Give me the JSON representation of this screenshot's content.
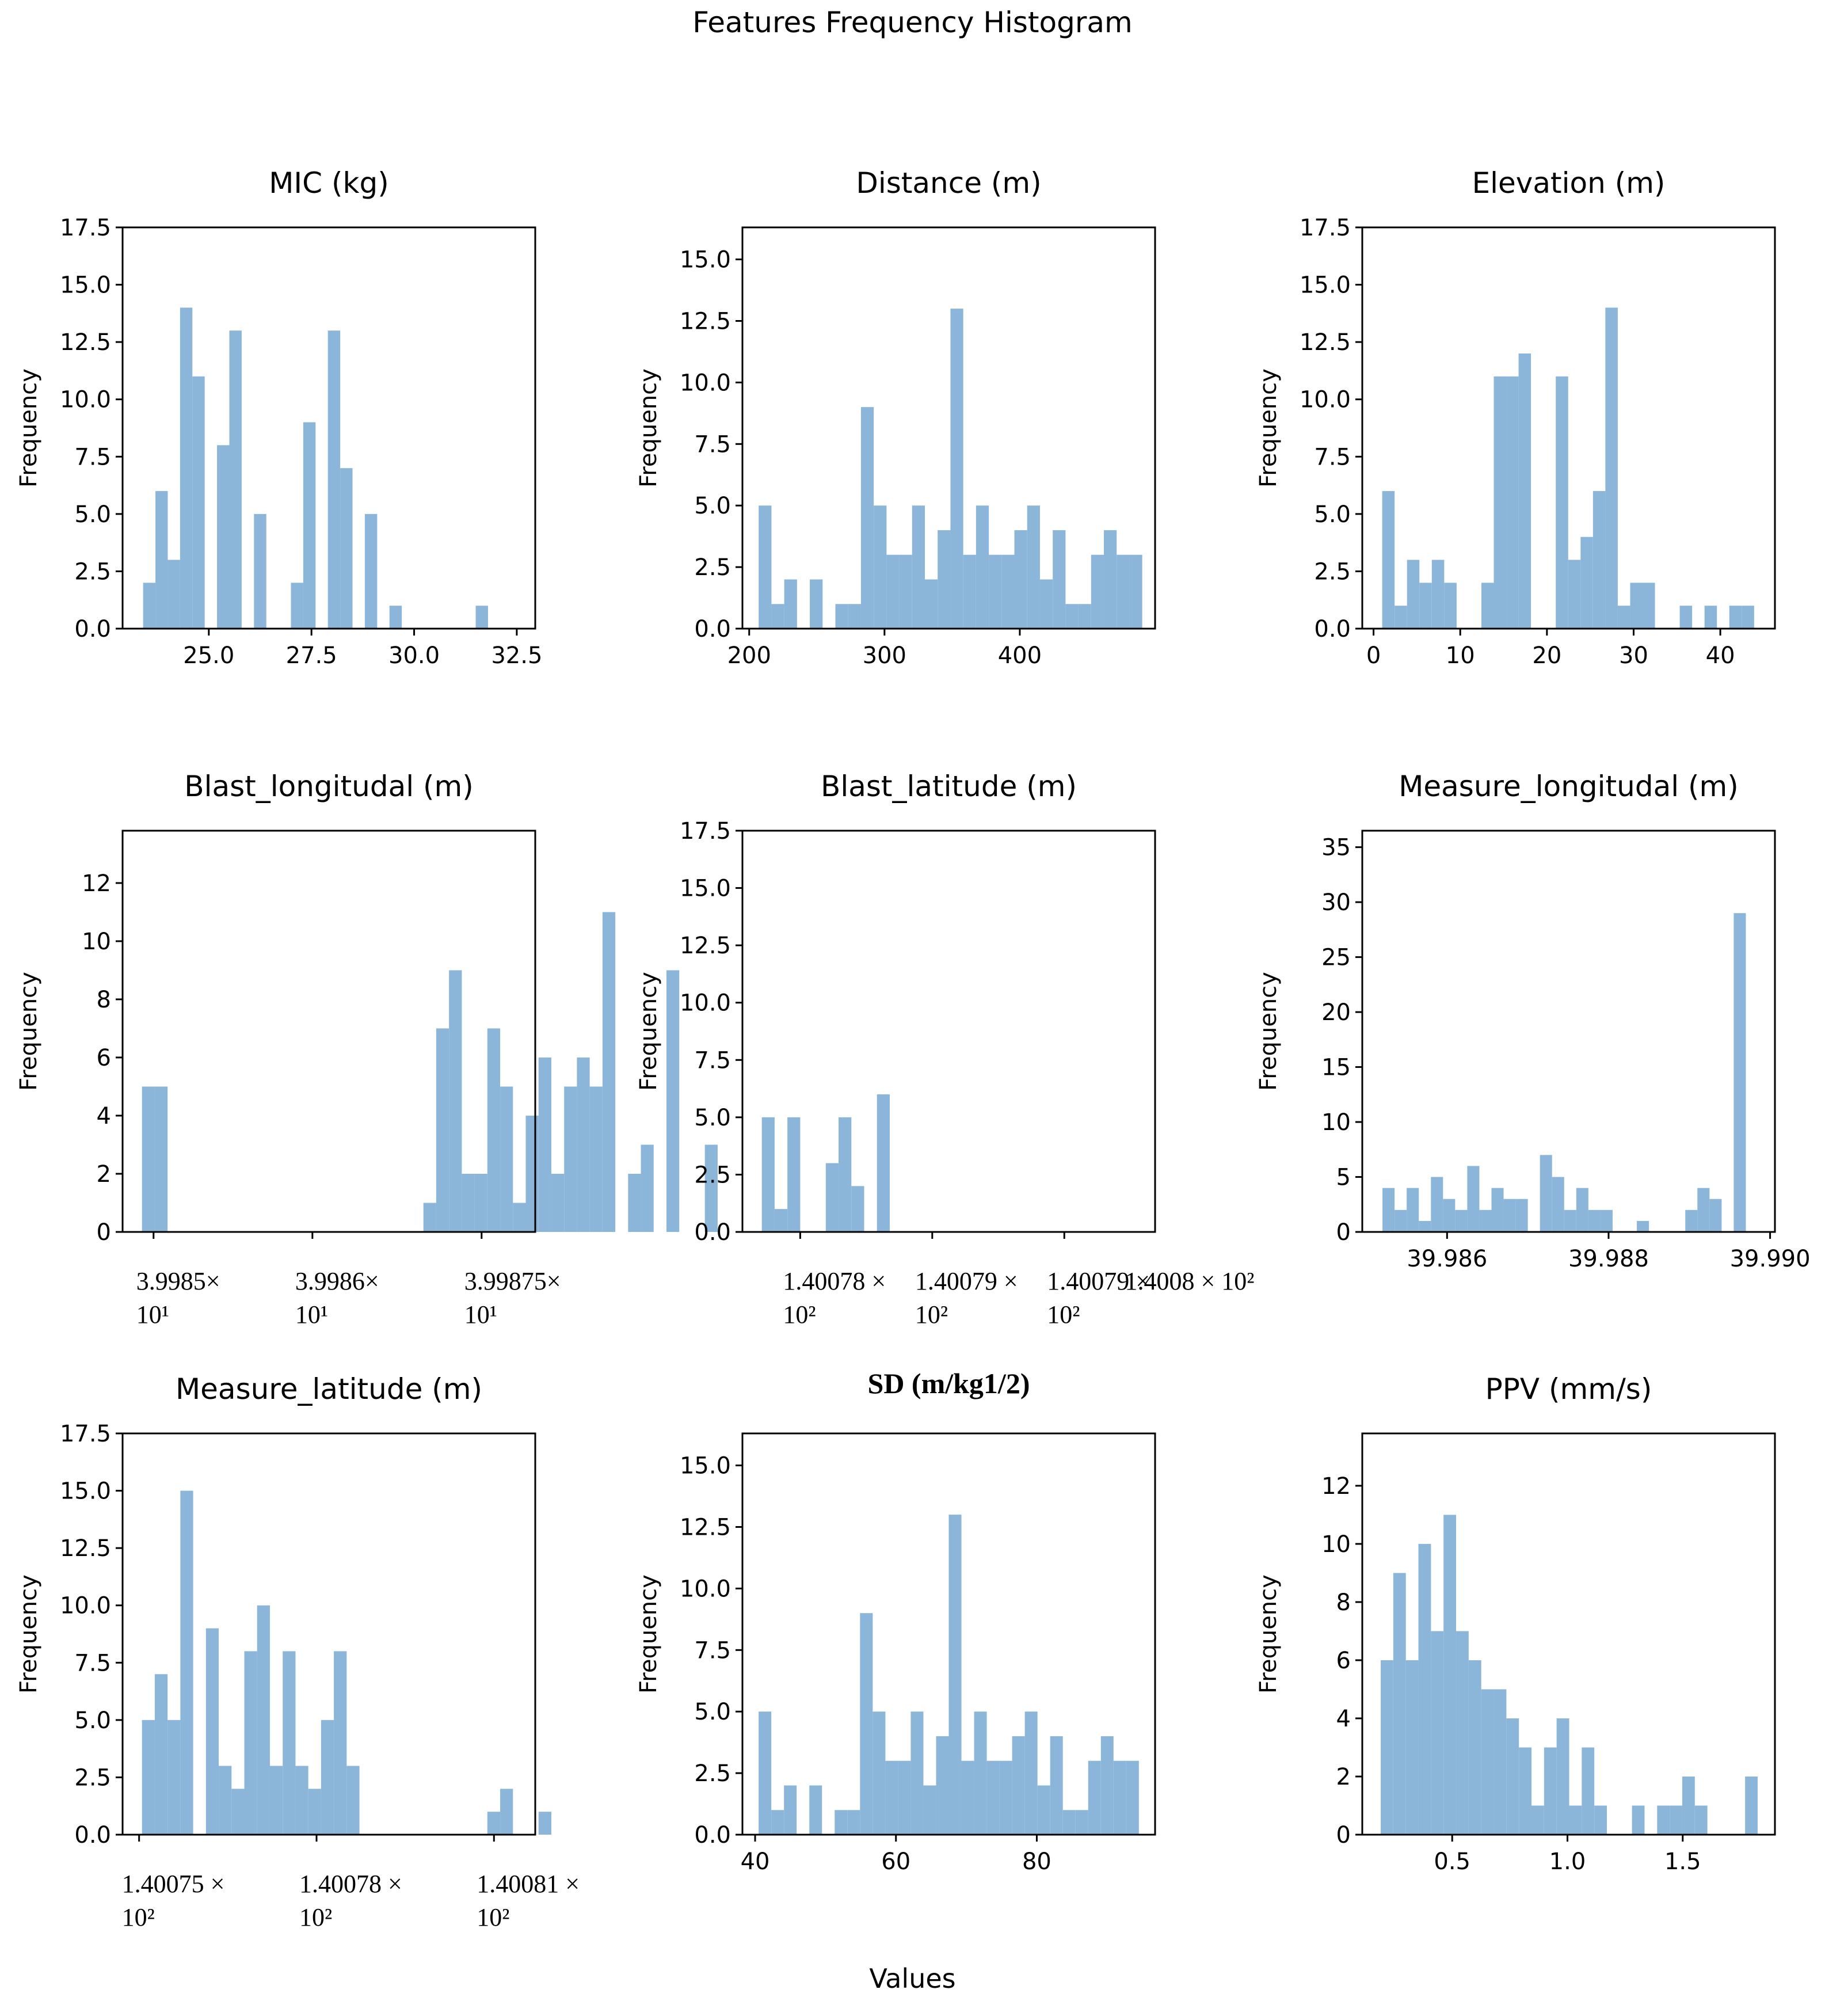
{
  "figure": {
    "title": "Features Frequency Histogram",
    "xlabel": "Values"
  },
  "chart_data": [
    {
      "type": "bar",
      "title": "MIC (kg)",
      "ylabel": "Frequency",
      "xlabel": "",
      "xlim": [
        22.9,
        32.95
      ],
      "ylim": [
        0,
        17.5
      ],
      "yticks": [
        "0.0",
        "2.5",
        "5.0",
        "7.5",
        "10.0",
        "12.5",
        "15.0",
        "17.5"
      ],
      "xticks": [
        {
          "value": 25.0,
          "lines": [
            "25.0"
          ]
        },
        {
          "value": 27.5,
          "lines": [
            "27.5"
          ]
        },
        {
          "value": 30.0,
          "lines": [
            "30.0"
          ]
        },
        {
          "value": 32.5,
          "lines": [
            "32.5"
          ]
        }
      ],
      "bin_start": 23.4,
      "bin_width": 0.3,
      "values": [
        2,
        6,
        3,
        14,
        11,
        0,
        8,
        13,
        0,
        5,
        0,
        0,
        2,
        9,
        0,
        13,
        7,
        0,
        5,
        0,
        1,
        0,
        0,
        0,
        0,
        0,
        0,
        1
      ]
    },
    {
      "type": "bar",
      "title": "Distance (m)",
      "ylabel": "Frequency",
      "xlabel": "",
      "xlim": [
        195,
        500
      ],
      "ylim": [
        0,
        16.3
      ],
      "yticks": [
        "0.0",
        "2.5",
        "5.0",
        "7.5",
        "10.0",
        "12.5",
        "15.0"
      ],
      "xticks": [
        {
          "value": 200,
          "lines": [
            "200"
          ]
        },
        {
          "value": 300,
          "lines": [
            "300"
          ]
        },
        {
          "value": 400,
          "lines": [
            "400"
          ]
        }
      ],
      "bin_start": 207,
      "bin_width": 9.45,
      "values": [
        5,
        1,
        2,
        0,
        2,
        0,
        1,
        1,
        9,
        5,
        3,
        3,
        5,
        2,
        4,
        13,
        3,
        5,
        3,
        3,
        4,
        5,
        2,
        4,
        1,
        1,
        3,
        4,
        3,
        3
      ]
    },
    {
      "type": "bar",
      "title": "Elevation (m)",
      "ylabel": "Frequency",
      "xlabel": "",
      "xlim": [
        -1.3,
        46.3
      ],
      "ylim": [
        0,
        17.5
      ],
      "yticks": [
        "0.0",
        "2.5",
        "5.0",
        "7.5",
        "10.0",
        "12.5",
        "15.0",
        "17.5"
      ],
      "xticks": [
        {
          "value": 0,
          "lines": [
            "0"
          ]
        },
        {
          "value": 10,
          "lines": [
            "10"
          ]
        },
        {
          "value": 20,
          "lines": [
            "20"
          ]
        },
        {
          "value": 30,
          "lines": [
            "30"
          ]
        },
        {
          "value": 40,
          "lines": [
            "40"
          ]
        }
      ],
      "bin_start": 1.0,
      "bin_width": 1.43,
      "values": [
        6,
        1,
        3,
        2,
        3,
        2,
        0,
        0,
        2,
        11,
        11,
        12,
        0,
        0,
        11,
        3,
        4,
        6,
        14,
        1,
        2,
        2,
        0,
        0,
        1,
        0,
        1,
        0,
        1,
        1
      ]
    },
    {
      "type": "bar",
      "title": "Blast_longitudal (m)",
      "ylabel": "Frequency",
      "xlabel": "",
      "xlim": [
        0,
        100
      ],
      "ylim": [
        0,
        13.8
      ],
      "yticks": [
        "0",
        "2",
        "4",
        "6",
        "8",
        "10",
        "12"
      ],
      "xticks": [
        {
          "value": 7.5,
          "lines": [
            "3.9985×",
            "10¹"
          ]
        },
        {
          "value": 46.0,
          "lines": [
            "3.9986×",
            "10¹"
          ]
        },
        {
          "value": 87.0,
          "lines": [
            "3.99875×",
            "10¹"
          ]
        }
      ],
      "bin_start": 4.7,
      "bin_width": 3.1,
      "values": [
        5,
        5,
        0,
        0,
        0,
        0,
        0,
        0,
        0,
        0,
        0,
        0,
        0,
        0,
        0,
        0,
        0,
        0,
        0,
        0,
        0,
        0,
        1,
        7,
        9,
        2,
        2,
        7,
        5,
        1,
        4,
        6,
        2,
        5,
        6,
        5,
        11,
        0,
        2,
        3,
        0,
        9,
        0,
        0,
        3
      ]
    },
    {
      "type": "bar",
      "title": "Blast_latitude (m)",
      "ylabel": "Frequency",
      "xlabel": "",
      "xlim": [
        0,
        100
      ],
      "ylim": [
        0,
        17.5
      ],
      "yticks": [
        "0.0",
        "2.5",
        "5.0",
        "7.5",
        "10.0",
        "12.5",
        "15.0",
        "17.5"
      ],
      "xticks": [
        {
          "value": 14.0,
          "lines": [
            "1.40078 ×",
            "10²"
          ]
        },
        {
          "value": 46.0,
          "lines": [
            "1.40079 ×",
            "10²"
          ]
        },
        {
          "value": 78.0,
          "lines": [
            "1.40079 ×",
            "10²"
          ]
        },
        {
          "value": 100.0,
          "lines": [
            "1.4008 × 10²"
          ]
        }
      ],
      "bin_start": 4.7,
      "bin_width": 3.1,
      "values": [
        5,
        1,
        5,
        0,
        0,
        3,
        5,
        2,
        0,
        6,
        0,
        0,
        0,
        0,
        0,
        0,
        0,
        0,
        0,
        0,
        0,
        0,
        0,
        0,
        0,
        0,
        0,
        0,
        0,
        0,
        0,
        0,
        0,
        0,
        0,
        0,
        0,
        0,
        0,
        0,
        0,
        0,
        0,
        0,
        0
      ]
    },
    {
      "type": "bar",
      "title": "Measure_longitudal (m)",
      "ylabel": "Frequency",
      "xlabel": "",
      "xlim": [
        39.98495,
        39.99006
      ],
      "ylim": [
        0,
        36.5
      ],
      "yticks": [
        "0",
        "5",
        "10",
        "15",
        "20",
        "25",
        "30",
        "35"
      ],
      "xticks": [
        {
          "value": 39.986,
          "lines": [
            "39.986"
          ]
        },
        {
          "value": 39.988,
          "lines": [
            "39.988"
          ]
        },
        {
          "value": 39.99,
          "lines": [
            "39.990"
          ]
        }
      ],
      "bin_start": 39.9852,
      "bin_width": 0.00015,
      "values": [
        4,
        2,
        4,
        1,
        5,
        3,
        2,
        6,
        2,
        4,
        3,
        3,
        0,
        7,
        5,
        2,
        4,
        2,
        2,
        0,
        0,
        1,
        0,
        0,
        0,
        2,
        4,
        3,
        0,
        29
      ]
    },
    {
      "type": "bar",
      "title": "Measure_latitude (m)",
      "ylabel": "Frequency",
      "xlabel": "",
      "xlim": [
        0,
        100
      ],
      "ylim": [
        0,
        17.5
      ],
      "yticks": [
        "0.0",
        "2.5",
        "5.0",
        "7.5",
        "10.0",
        "12.5",
        "15.0",
        "17.5"
      ],
      "xticks": [
        {
          "value": 4.0,
          "lines": [
            "1.40075 ×",
            "10²"
          ]
        },
        {
          "value": 47.0,
          "lines": [
            "1.40078 ×",
            "10²"
          ]
        },
        {
          "value": 90.0,
          "lines": [
            "1.40081 ×",
            "10²"
          ]
        }
      ],
      "bin_start": 4.7,
      "bin_width": 3.1,
      "values": [
        5,
        7,
        5,
        15,
        0,
        9,
        3,
        2,
        8,
        10,
        3,
        8,
        3,
        2,
        5,
        8,
        3,
        0,
        0,
        0,
        0,
        0,
        0,
        0,
        0,
        0,
        0,
        1,
        2,
        0,
        0,
        1
      ]
    },
    {
      "type": "bar",
      "title": "SD (m/kg1/2)",
      "ylabel": "Frequency",
      "xlabel": "",
      "xlim": [
        38.2,
        96.8
      ],
      "ylim": [
        0,
        16.3
      ],
      "yticks": [
        "0.0",
        "2.5",
        "5.0",
        "7.5",
        "10.0",
        "12.5",
        "15.0"
      ],
      "xticks": [
        {
          "value": 40,
          "lines": [
            "40"
          ]
        },
        {
          "value": 60,
          "lines": [
            "60"
          ]
        },
        {
          "value": 80,
          "lines": [
            "80"
          ]
        }
      ],
      "bin_start": 40.5,
      "bin_width": 1.8,
      "values": [
        5,
        1,
        2,
        0,
        2,
        0,
        1,
        1,
        9,
        5,
        3,
        3,
        5,
        2,
        4,
        13,
        3,
        5,
        3,
        3,
        4,
        5,
        2,
        4,
        1,
        1,
        3,
        4,
        3,
        3
      ]
    },
    {
      "type": "bar",
      "title": "PPV (mm/s)",
      "ylabel": "Frequency",
      "xlabel": "",
      "xlim": [
        0.11,
        1.9
      ],
      "ylim": [
        0,
        13.8
      ],
      "yticks": [
        "0",
        "2",
        "4",
        "6",
        "8",
        "10",
        "12"
      ],
      "xticks": [
        {
          "value": 0.5,
          "lines": [
            "0.5"
          ]
        },
        {
          "value": 1.0,
          "lines": [
            "1.0"
          ]
        },
        {
          "value": 1.5,
          "lines": [
            "1.5"
          ]
        }
      ],
      "bin_start": 0.19,
      "bin_width": 0.0545,
      "values": [
        6,
        9,
        6,
        10,
        7,
        11,
        7,
        6,
        5,
        5,
        4,
        3,
        1,
        3,
        4,
        1,
        3,
        1,
        0,
        0,
        1,
        0,
        1,
        1,
        2,
        1,
        0,
        0,
        0,
        2
      ]
    }
  ]
}
